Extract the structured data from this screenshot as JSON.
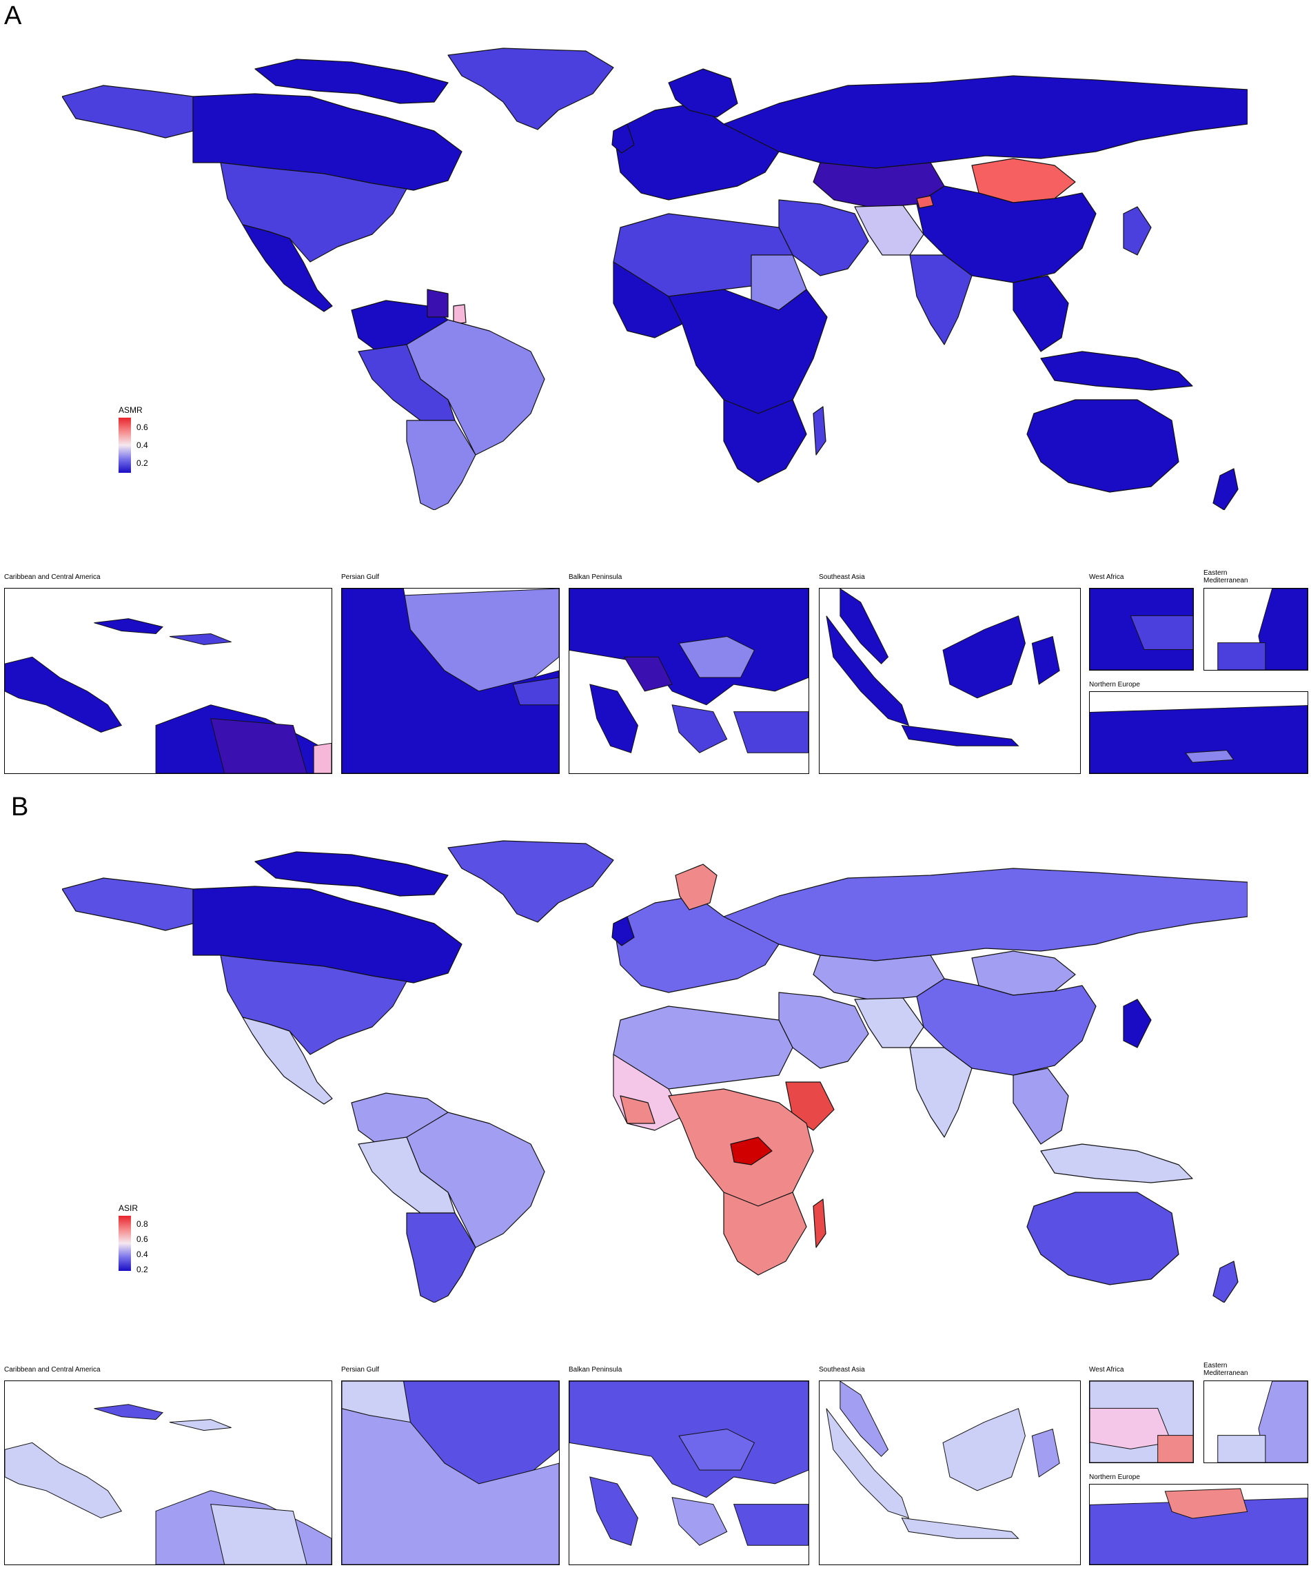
{
  "panels": [
    {
      "letter": "A",
      "legend": {
        "title": "ASMR",
        "ticks": [
          "0.6",
          "0.4",
          "0.2"
        ]
      },
      "colors": {
        "dominant": "#1a0cc4",
        "medium": "#4b40dd",
        "light": "#8a86ee",
        "pale": "#c9c4f3",
        "pink": "#f6b8d8",
        "red": "#f66060"
      },
      "insets": [
        "Caribbean and Central America",
        "Persian Gulf",
        "Balkan Peninsula",
        "Southeast Asia",
        "West Africa",
        "Eastern Mediterranean",
        "Northern Europe"
      ]
    },
    {
      "letter": "B",
      "legend": {
        "title": "ASIR",
        "ticks": [
          "0.8",
          "0.6",
          "0.4",
          "0.2"
        ]
      },
      "colors": {
        "dominant": "#7068ec",
        "dark": "#1a0cc4",
        "medium": "#5a50e4",
        "light": "#a29ef2",
        "pale": "#cdd0f6",
        "pink": "#f4c6e8",
        "salmon": "#f08a8a",
        "red": "#e84848",
        "darkred": "#d00000"
      },
      "insets": [
        "Caribbean and Central America",
        "Persian Gulf",
        "Balkan Peninsula",
        "Southeast Asia",
        "West Africa",
        "Eastern Mediterranean",
        "Northern Europe"
      ]
    }
  ]
}
